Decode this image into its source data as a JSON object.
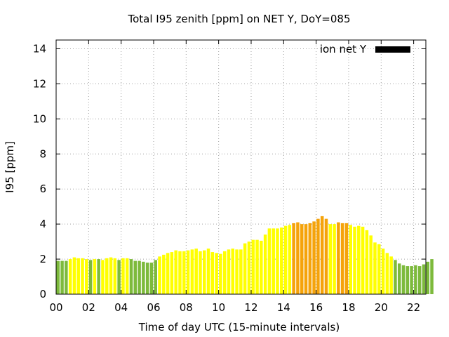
{
  "chart_data": {
    "type": "bar",
    "title": "Total I95 zenith [ppm] on NET Y, DoY=085",
    "xlabel": "Time of day UTC (15-minute intervals)",
    "ylabel": "I95 [ppm]",
    "xlim": [
      0,
      22.75
    ],
    "ylim": [
      0,
      14.5
    ],
    "x_ticks": [
      0,
      2,
      4,
      6,
      8,
      10,
      12,
      14,
      16,
      18,
      20,
      22
    ],
    "x_tick_labels": [
      "00",
      "02",
      "04",
      "06",
      "08",
      "10",
      "12",
      "14",
      "16",
      "18",
      "20",
      "22"
    ],
    "y_ticks": [
      0,
      2,
      4,
      6,
      8,
      10,
      12,
      14
    ],
    "y_tick_labels": [
      "0",
      "2",
      "4",
      "6",
      "8",
      "10",
      "12",
      "14"
    ],
    "grid": true,
    "legend": {
      "label": "ion net Y",
      "color": "#000000",
      "placement": "top-right"
    },
    "bar_interval_hours": 0.25,
    "colors": {
      "green": "#7dba3c",
      "yellow": "#ffff00",
      "orange": "#f5a30a"
    },
    "series": [
      {
        "values": [
          1.9,
          1.9,
          1.9,
          2.0,
          2.1,
          2.05,
          2.05,
          2.0,
          1.95,
          2.0,
          2.0,
          1.95,
          2.05,
          2.1,
          2.05,
          1.95,
          2.05,
          2.05,
          2.0,
          1.9,
          1.9,
          1.85,
          1.8,
          1.8,
          1.95,
          2.15,
          2.25,
          2.35,
          2.4,
          2.5,
          2.45,
          2.45,
          2.5,
          2.55,
          2.6,
          2.45,
          2.5,
          2.6,
          2.4,
          2.35,
          2.3,
          2.45,
          2.55,
          2.6,
          2.55,
          2.55,
          2.9,
          3.0,
          3.1,
          3.1,
          3.05,
          3.4,
          3.75,
          3.75,
          3.75,
          3.8,
          3.9,
          3.95,
          4.05,
          4.1,
          4.0,
          4.0,
          4.05,
          4.15,
          4.3,
          4.45,
          4.3,
          4.0,
          4.0,
          4.1,
          4.05,
          4.05,
          3.95,
          3.85,
          3.9,
          3.85,
          3.65,
          3.35,
          2.95,
          2.85,
          2.6,
          2.35,
          2.15,
          1.95,
          1.75,
          1.65,
          1.6,
          1.6,
          1.65,
          1.6,
          1.7,
          1.85,
          2.0
        ],
        "colors": [
          "green",
          "green",
          "green",
          "yellow",
          "yellow",
          "yellow",
          "yellow",
          "yellow",
          "green",
          "yellow",
          "green",
          "yellow",
          "yellow",
          "yellow",
          "yellow",
          "green",
          "yellow",
          "yellow",
          "green",
          "green",
          "green",
          "green",
          "green",
          "green",
          "green",
          "yellow",
          "yellow",
          "yellow",
          "yellow",
          "yellow",
          "yellow",
          "yellow",
          "yellow",
          "yellow",
          "yellow",
          "yellow",
          "yellow",
          "yellow",
          "yellow",
          "yellow",
          "yellow",
          "yellow",
          "yellow",
          "yellow",
          "yellow",
          "yellow",
          "yellow",
          "yellow",
          "yellow",
          "yellow",
          "yellow",
          "yellow",
          "yellow",
          "yellow",
          "yellow",
          "yellow",
          "yellow",
          "yellow",
          "orange",
          "orange",
          "orange",
          "orange",
          "orange",
          "orange",
          "orange",
          "orange",
          "orange",
          "yellow",
          "yellow",
          "orange",
          "orange",
          "orange",
          "yellow",
          "yellow",
          "yellow",
          "yellow",
          "yellow",
          "yellow",
          "yellow",
          "yellow",
          "yellow",
          "yellow",
          "yellow",
          "green",
          "green",
          "green",
          "green",
          "green",
          "green",
          "green",
          "green",
          "green",
          "green"
        ]
      }
    ]
  }
}
